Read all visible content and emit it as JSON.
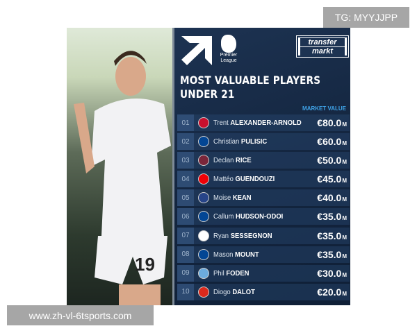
{
  "header": {
    "title_line1": "MOST VALUABLE PLAYERS",
    "title_line2": "UNDER 21",
    "league_line1": "Premier",
    "league_line2": "League",
    "brand_line1": "transfer",
    "brand_line2": "markt",
    "column_label": "MARKET VALUE"
  },
  "players": [
    {
      "rank": "01",
      "first": "Trent",
      "last": "ALEXANDER-ARNOLD",
      "value": "€80.0",
      "unit": "M",
      "club_color": "#c8102e"
    },
    {
      "rank": "02",
      "first": "Christian",
      "last": "PULISIC",
      "value": "€60.0",
      "unit": "M",
      "club_color": "#034694"
    },
    {
      "rank": "03",
      "first": "Declan",
      "last": "RICE",
      "value": "€50.0",
      "unit": "M",
      "club_color": "#7a263a"
    },
    {
      "rank": "04",
      "first": "Mattéo",
      "last": "GUENDOUZI",
      "value": "€45.0",
      "unit": "M",
      "club_color": "#ef0107"
    },
    {
      "rank": "05",
      "first": "Moise",
      "last": "KEAN",
      "value": "€40.0",
      "unit": "M",
      "club_color": "#274488"
    },
    {
      "rank": "06",
      "first": "Callum",
      "last": "HUDSON-ODOI",
      "value": "€35.0",
      "unit": "M",
      "club_color": "#034694"
    },
    {
      "rank": "07",
      "first": "Ryan",
      "last": "SESSEGNON",
      "value": "€35.0",
      "unit": "M",
      "club_color": "#ffffff"
    },
    {
      "rank": "08",
      "first": "Mason",
      "last": "MOUNT",
      "value": "€35.0",
      "unit": "M",
      "club_color": "#034694"
    },
    {
      "rank": "09",
      "first": "Phil",
      "last": "FODEN",
      "value": "€30.0",
      "unit": "M",
      "club_color": "#6cabdd"
    },
    {
      "rank": "10",
      "first": "Diogo",
      "last": "DALOT",
      "value": "€20.0",
      "unit": "M",
      "club_color": "#da291c"
    }
  ],
  "photo": {
    "shirt_number": "19"
  },
  "watermarks": {
    "top": "TG: MYYJJPP",
    "bottom": "www.zh-vl-6tsports.com"
  }
}
